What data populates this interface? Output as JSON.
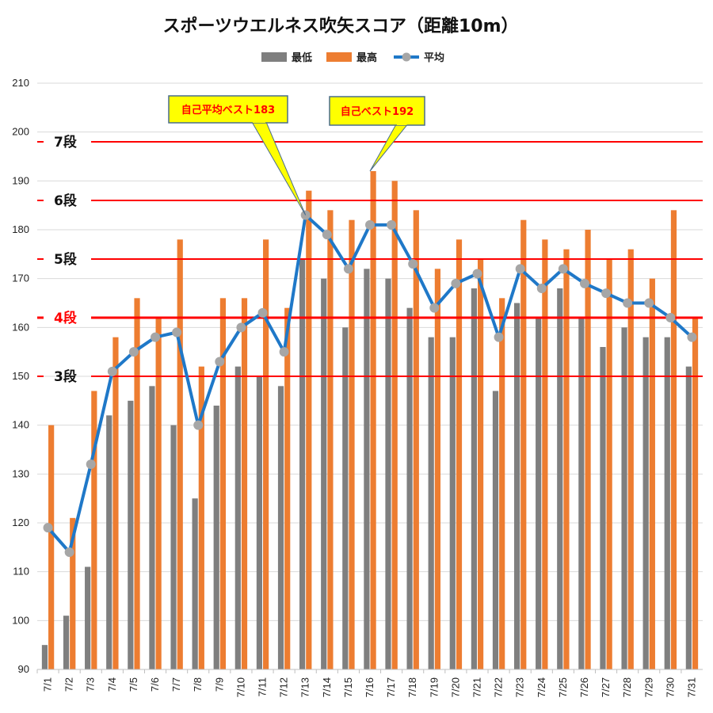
{
  "title": "スポーツウエルネス吹矢スコア（距離10m）",
  "legend": [
    {
      "name": "最低",
      "color": "#7f7f7f",
      "kind": "bar"
    },
    {
      "name": "最高",
      "color": "#ed7d31",
      "kind": "bar"
    },
    {
      "name": "平均",
      "color": "#1f78c8",
      "kind": "line"
    }
  ],
  "rank_lines": [
    {
      "label": "7段",
      "value": 198,
      "label_color": "#111111"
    },
    {
      "label": "6段",
      "value": 186,
      "label_color": "#111111"
    },
    {
      "label": "5段",
      "value": 174,
      "label_color": "#111111"
    },
    {
      "label": "4段",
      "value": 162,
      "label_color": "#ff0000"
    },
    {
      "label": "3段",
      "value": 150,
      "label_color": "#111111"
    }
  ],
  "callouts": [
    {
      "text": "自己平均ベスト183",
      "target_category": "7/13",
      "target_value": 183
    },
    {
      "text": "自己ベスト192",
      "target_category": "7/16",
      "target_value": 192
    }
  ],
  "chart_data": {
    "type": "bar",
    "title": "スポーツウエルネス吹矢スコア（距離10m）",
    "categories": [
      "7/1",
      "7/2",
      "7/3",
      "7/4",
      "7/5",
      "7/6",
      "7/7",
      "7/8",
      "7/9",
      "7/10",
      "7/11",
      "7/12",
      "7/13",
      "7/14",
      "7/15",
      "7/16",
      "7/17",
      "7/18",
      "7/19",
      "7/20",
      "7/21",
      "7/22",
      "7/23",
      "7/24",
      "7/25",
      "7/26",
      "7/27",
      "7/28",
      "7/29",
      "7/30",
      "7/31"
    ],
    "series": [
      {
        "name": "最低",
        "type": "bar",
        "color": "#7f7f7f",
        "values": [
          95,
          101,
          111,
          142,
          145,
          148,
          140,
          125,
          144,
          152,
          150,
          148,
          174,
          170,
          160,
          172,
          170,
          164,
          158,
          158,
          168,
          147,
          165,
          162,
          168,
          162,
          156,
          160,
          158,
          158,
          152
        ]
      },
      {
        "name": "最高",
        "type": "bar",
        "color": "#ed7d31",
        "values": [
          140,
          121,
          147,
          158,
          166,
          162,
          178,
          152,
          166,
          166,
          178,
          164,
          188,
          184,
          182,
          192,
          190,
          184,
          172,
          178,
          174,
          166,
          182,
          178,
          176,
          180,
          174,
          176,
          170,
          184,
          162
        ]
      },
      {
        "name": "平均",
        "type": "line",
        "color": "#1f78c8",
        "values": [
          119,
          114,
          132,
          151,
          155,
          158,
          159,
          140,
          153,
          160,
          163,
          155,
          183,
          179,
          172,
          181,
          181,
          173,
          164,
          169,
          171,
          158,
          172,
          168,
          172,
          169,
          167,
          165,
          165,
          162,
          158
        ]
      }
    ],
    "ylim": [
      90,
      210
    ],
    "yticks": [
      90,
      100,
      110,
      120,
      130,
      140,
      150,
      160,
      170,
      180,
      190,
      200,
      210
    ],
    "grid": true,
    "legend_position": "top"
  }
}
